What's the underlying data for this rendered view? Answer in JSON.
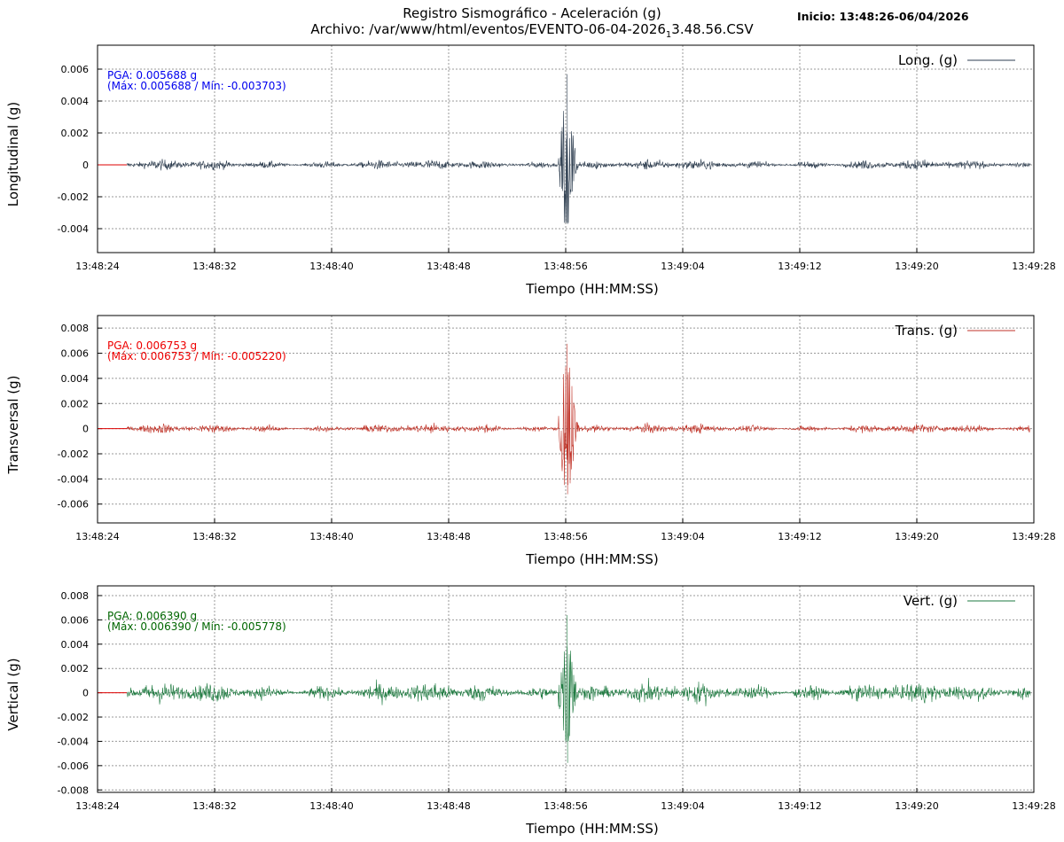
{
  "header": {
    "title": "Registro Sismográfico - Aceleración (g)",
    "archivo_prefix": "Archivo: /var/www/html/eventos/EVENTO-06-04-2026",
    "archivo_sub": "1",
    "archivo_suffix": "3.48.56.CSV",
    "inicio": "Inicio: 13:48:26-06/04/2026"
  },
  "colors": {
    "longitudinal": "#2e3e50",
    "transversal": "#c03328",
    "vertical": "#1e7a40",
    "zero_line": "#dd0000",
    "grid": "#999999"
  },
  "chart_data": [
    {
      "type": "line",
      "ylabel": "Longitudinal (g)",
      "xlabel": "Tiempo (HH:MM:SS)",
      "legend": "Long. (g)",
      "legend_position": "top-right",
      "grid": true,
      "xlim": [
        "13:48:24",
        "13:49:28"
      ],
      "ylim": [
        -0.0055,
        0.0075
      ],
      "yticks": [
        "0.006",
        "0.004",
        "0.002",
        "0",
        "-0.002",
        "-0.004"
      ],
      "xticks": [
        "13:48:24",
        "13:48:32",
        "13:48:40",
        "13:48:48",
        "13:48:56",
        "13:49:04",
        "13:49:12",
        "13:49:20",
        "13:49:28"
      ],
      "pga_text": "PGA: 0.005688 g",
      "maxmin_text": "(Máx: 0.005688 / Mín: -0.003703)",
      "pga": 0.005688,
      "max": 0.005688,
      "min": -0.003703,
      "signal_start": "13:48:26",
      "event_time": "13:48:56",
      "signal_end": "13:49:28",
      "noise_amplitude": 0.0006
    },
    {
      "type": "line",
      "ylabel": "Transversal (g)",
      "xlabel": "Tiempo (HH:MM:SS)",
      "legend": "Trans. (g)",
      "legend_position": "top-right",
      "grid": true,
      "xlim": [
        "13:48:24",
        "13:49:28"
      ],
      "ylim": [
        -0.0075,
        0.009
      ],
      "yticks": [
        "0.008",
        "0.006",
        "0.004",
        "0.002",
        "0",
        "-0.002",
        "-0.004",
        "-0.006"
      ],
      "xticks": [
        "13:48:24",
        "13:48:32",
        "13:48:40",
        "13:48:48",
        "13:48:56",
        "13:49:04",
        "13:49:12",
        "13:49:20",
        "13:49:28"
      ],
      "pga_text": "PGA: 0.006753 g",
      "maxmin_text": "(Máx: 0.006753 / Mín: -0.005220)",
      "pga": 0.006753,
      "max": 0.006753,
      "min": -0.00522,
      "signal_start": "13:48:26",
      "event_time": "13:48:56",
      "signal_end": "13:49:28",
      "noise_amplitude": 0.0007
    },
    {
      "type": "line",
      "ylabel": "Vertical (g)",
      "xlabel": "Tiempo (HH:MM:SS)",
      "legend": "Vert. (g)",
      "legend_position": "top-right",
      "grid": true,
      "xlim": [
        "13:48:24",
        "13:49:28"
      ],
      "ylim": [
        -0.0082,
        0.0088
      ],
      "yticks": [
        "0.008",
        "0.006",
        "0.004",
        "0.002",
        "0",
        "-0.002",
        "-0.004",
        "-0.006",
        "-0.008"
      ],
      "xticks": [
        "13:48:24",
        "13:48:32",
        "13:48:40",
        "13:48:48",
        "13:48:56",
        "13:49:04",
        "13:49:12",
        "13:49:20",
        "13:49:28"
      ],
      "pga_text": "PGA: 0.006390 g",
      "maxmin_text": "(Máx: 0.006390 / Mín: -0.005778)",
      "pga": 0.00639,
      "max": 0.00639,
      "min": -0.005778,
      "signal_start": "13:48:26",
      "event_time": "13:48:56",
      "signal_end": "13:49:28",
      "noise_amplitude": 0.0016
    }
  ]
}
